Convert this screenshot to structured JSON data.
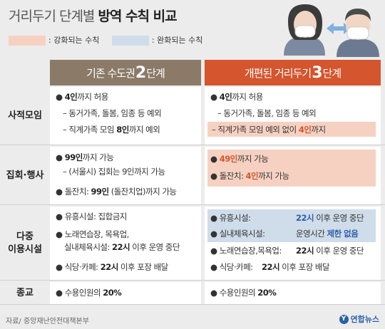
{
  "title": {
    "prefix": "거리두기 단계별 ",
    "strong": "방역 수칙 비교"
  },
  "legend": {
    "strong": ": 강화되는 수칙",
    "relax": ": 완화되는 수칙"
  },
  "colors": {
    "left_header": "#8a7a67",
    "right_header": "#d4552e",
    "strengthened": "#f6d1c2",
    "relaxed": "#cfdcea"
  },
  "headers": {
    "left": {
      "text": "기존 수도권 ",
      "num": "2",
      "suffix": "단계"
    },
    "right": {
      "text": "개편된 거리두기 ",
      "num": "3",
      "suffix": "단계"
    }
  },
  "rows": {
    "gathering": {
      "label": "사적모임",
      "left": {
        "l1a": "4인",
        "l1b": "까지 허용",
        "l2": "– 동거가족, 돌봄, 임종 등 예외",
        "l3a": "– 직계가족 모임 ",
        "l3b": "8인",
        "l3c": "까지 예외"
      },
      "right": {
        "l1a": "4인",
        "l1b": "까지 허용",
        "l2": "– 동거가족, 돌봄, 임종 등 예외",
        "l3a": "– 직계가족 모임 예외 없이 ",
        "l3b": "4인",
        "l3c": "까지"
      }
    },
    "assembly": {
      "label": "집회·행사",
      "left": {
        "l1a": "99인",
        "l1b": "까지 가능",
        "l2": "– (서울시) 집회는 9인까지 가능",
        "l3a": "돌잔치: ",
        "l3b": "99인",
        "l3c": " (돌잔치업)",
        "l3d": "까지 가능"
      },
      "right": {
        "l1a": "49인",
        "l1b": "까지 가능",
        "l2a": "돌잔치: ",
        "l2b": "4인",
        "l2c": "까지 가능"
      }
    },
    "facilities": {
      "label1": "다중",
      "label2": "이용시설",
      "left": {
        "l1": "유흥시설: 집합금지",
        "l2": "노래연습장, 목욕업,",
        "l3a": "실내체육시설: ",
        "l3b": "22시",
        "l3c": " 이후 운영 중단",
        "l4a": "식당·카페: ",
        "l4b": "22시",
        "l4c": " 이후 포장 배달"
      },
      "right": {
        "l1a": "유흥시설:",
        "l1b": "22시",
        "l1c": " 이후 운영 중단",
        "l2a": "실내체육시설:",
        "l2b": "운영시간 ",
        "l2c": "제한 없음",
        "l3a": "노래연습장,목욕업:",
        "l3b": "22시",
        "l3c": " 이후 운영 중단",
        "l4a": "식당·카페:",
        "l4b": "22시",
        "l4c": " 이후 포장 배달"
      }
    },
    "religion": {
      "label": "종교",
      "left": {
        "a": "수용인원의 ",
        "b": "20%"
      },
      "right": {
        "a": "수용인원의 ",
        "b": "20%"
      }
    }
  },
  "bullet": "●",
  "source": "자료/ 중앙재난안전대책본부",
  "logo": {
    "mark": "Y",
    "text": "연합뉴스"
  }
}
